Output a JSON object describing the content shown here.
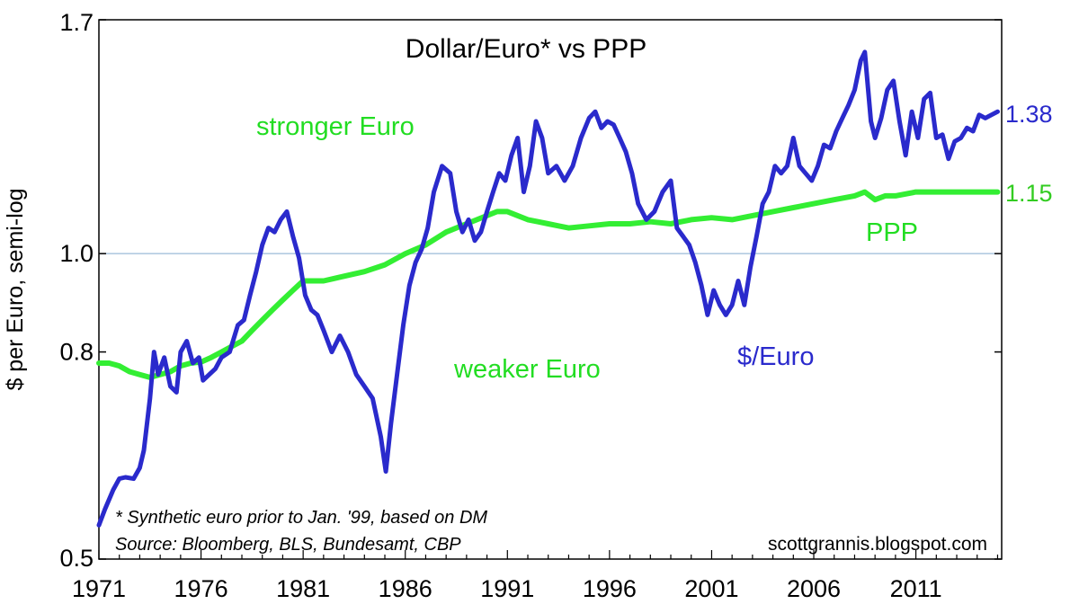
{
  "chart_data": {
    "type": "line",
    "title": "Dollar/Euro* vs PPP",
    "ylabel": "$ per Euro, semi-log",
    "xlabel": "",
    "yscale": "log",
    "ylim": [
      0.5,
      1.7
    ],
    "xlim": [
      1971,
      2015.2
    ],
    "yticks": [
      {
        "value": 0.5,
        "label": "0.5"
      },
      {
        "value": 0.8,
        "label": "0.8"
      },
      {
        "value": 1.0,
        "label": "1.0"
      },
      {
        "value": 1.7,
        "label": "1.7"
      }
    ],
    "xticks": [
      {
        "value": 1971,
        "label": "1971"
      },
      {
        "value": 1976,
        "label": "1976"
      },
      {
        "value": 1981,
        "label": "1981"
      },
      {
        "value": 1986,
        "label": "1986"
      },
      {
        "value": 1991,
        "label": "1991"
      },
      {
        "value": 1996,
        "label": "1996"
      },
      {
        "value": 2001,
        "label": "2001"
      },
      {
        "value": 2006,
        "label": "2006"
      },
      {
        "value": 2011,
        "label": "2011"
      }
    ],
    "reference_line": {
      "value": 1.0,
      "color": "#9bbbd8"
    },
    "series": [
      {
        "name": "$/Euro",
        "color": "#2a2acc",
        "end_label": "1.38",
        "x": [
          1971.0,
          1971.3,
          1971.7,
          1972.0,
          1972.3,
          1972.7,
          1973.0,
          1973.2,
          1973.5,
          1973.7,
          1973.9,
          1974.2,
          1974.5,
          1974.8,
          1975.0,
          1975.3,
          1975.6,
          1975.9,
          1976.1,
          1976.4,
          1976.7,
          1977.0,
          1977.4,
          1977.8,
          1978.1,
          1978.4,
          1978.7,
          1979.0,
          1979.3,
          1979.6,
          1979.9,
          1980.2,
          1980.5,
          1980.8,
          1981.1,
          1981.4,
          1981.7,
          1982.0,
          1982.4,
          1982.8,
          1983.2,
          1983.6,
          1984.0,
          1984.4,
          1984.8,
          1985.05,
          1985.3,
          1985.6,
          1985.9,
          1986.2,
          1986.5,
          1986.8,
          1987.1,
          1987.4,
          1987.8,
          1988.2,
          1988.5,
          1988.8,
          1989.1,
          1989.4,
          1989.7,
          1990.0,
          1990.3,
          1990.6,
          1990.9,
          1991.2,
          1991.5,
          1991.8,
          1992.1,
          1992.4,
          1992.7,
          1993.0,
          1993.4,
          1993.8,
          1994.2,
          1994.6,
          1995.0,
          1995.3,
          1995.6,
          1995.9,
          1996.2,
          1996.5,
          1996.8,
          1997.1,
          1997.4,
          1997.8,
          1998.2,
          1998.6,
          1999.0,
          1999.3,
          1999.6,
          1999.9,
          2000.2,
          2000.5,
          2000.8,
          2001.1,
          2001.4,
          2001.7,
          2002.0,
          2002.3,
          2002.6,
          2002.9,
          2003.2,
          2003.5,
          2003.8,
          2004.1,
          2004.4,
          2004.7,
          2005.0,
          2005.3,
          2005.6,
          2005.9,
          2006.2,
          2006.5,
          2006.8,
          2007.1,
          2007.4,
          2007.7,
          2008.0,
          2008.3,
          2008.5,
          2008.8,
          2009.0,
          2009.3,
          2009.6,
          2009.9,
          2010.2,
          2010.5,
          2010.8,
          2011.1,
          2011.4,
          2011.7,
          2012.0,
          2012.3,
          2012.6,
          2012.9,
          2013.2,
          2013.5,
          2013.8,
          2014.1,
          2014.4,
          2014.7,
          2015.0
        ],
        "values": [
          0.54,
          0.56,
          0.585,
          0.6,
          0.602,
          0.6,
          0.615,
          0.64,
          0.72,
          0.8,
          0.76,
          0.79,
          0.74,
          0.73,
          0.8,
          0.82,
          0.78,
          0.79,
          0.75,
          0.76,
          0.77,
          0.79,
          0.8,
          0.85,
          0.86,
          0.91,
          0.96,
          1.02,
          1.06,
          1.05,
          1.08,
          1.1,
          1.04,
          0.99,
          0.91,
          0.88,
          0.87,
          0.84,
          0.8,
          0.83,
          0.8,
          0.76,
          0.74,
          0.72,
          0.66,
          0.61,
          0.68,
          0.76,
          0.85,
          0.93,
          0.98,
          1.01,
          1.06,
          1.15,
          1.22,
          1.2,
          1.1,
          1.05,
          1.08,
          1.03,
          1.05,
          1.1,
          1.15,
          1.2,
          1.18,
          1.25,
          1.3,
          1.15,
          1.22,
          1.35,
          1.3,
          1.2,
          1.22,
          1.18,
          1.22,
          1.3,
          1.36,
          1.38,
          1.33,
          1.35,
          1.34,
          1.3,
          1.26,
          1.2,
          1.12,
          1.08,
          1.1,
          1.15,
          1.18,
          1.06,
          1.04,
          1.02,
          0.98,
          0.93,
          0.87,
          0.92,
          0.89,
          0.87,
          0.89,
          0.94,
          0.89,
          0.97,
          1.04,
          1.12,
          1.15,
          1.22,
          1.2,
          1.22,
          1.3,
          1.22,
          1.2,
          1.18,
          1.22,
          1.28,
          1.27,
          1.32,
          1.36,
          1.4,
          1.45,
          1.55,
          1.58,
          1.35,
          1.3,
          1.36,
          1.45,
          1.48,
          1.35,
          1.25,
          1.38,
          1.3,
          1.42,
          1.44,
          1.3,
          1.31,
          1.24,
          1.29,
          1.3,
          1.33,
          1.32,
          1.37,
          1.36,
          1.37,
          1.38
        ]
      },
      {
        "name": "PPP",
        "color": "#33ee33",
        "end_label": "1.15",
        "x": [
          1971.0,
          1971.5,
          1972.0,
          1972.5,
          1973.0,
          1973.5,
          1974.0,
          1974.5,
          1975.0,
          1975.5,
          1976.0,
          1976.5,
          1977.0,
          1977.5,
          1978.0,
          1978.5,
          1979.0,
          1979.5,
          1980.0,
          1980.5,
          1981.0,
          1981.5,
          1982.0,
          1982.5,
          1983.0,
          1984.0,
          1985.0,
          1986.0,
          1987.0,
          1988.0,
          1989.0,
          1990.0,
          1990.5,
          1991.0,
          1991.5,
          1992.0,
          1992.5,
          1993.0,
          1993.5,
          1994.0,
          1995.0,
          1996.0,
          1997.0,
          1998.0,
          1999.0,
          2000.0,
          2001.0,
          2002.0,
          2003.0,
          2004.0,
          2005.0,
          2006.0,
          2007.0,
          2008.0,
          2008.5,
          2009.0,
          2009.5,
          2010.0,
          2011.0,
          2012.0,
          2013.0,
          2014.0,
          2015.0
        ],
        "values": [
          0.78,
          0.78,
          0.775,
          0.765,
          0.76,
          0.755,
          0.76,
          0.765,
          0.775,
          0.78,
          0.782,
          0.79,
          0.8,
          0.81,
          0.82,
          0.84,
          0.86,
          0.88,
          0.9,
          0.92,
          0.94,
          0.94,
          0.94,
          0.945,
          0.95,
          0.96,
          0.975,
          1.0,
          1.02,
          1.05,
          1.07,
          1.09,
          1.1,
          1.1,
          1.09,
          1.08,
          1.075,
          1.07,
          1.065,
          1.06,
          1.065,
          1.07,
          1.07,
          1.075,
          1.07,
          1.08,
          1.085,
          1.08,
          1.09,
          1.1,
          1.11,
          1.12,
          1.13,
          1.14,
          1.15,
          1.13,
          1.14,
          1.14,
          1.15,
          1.15,
          1.15,
          1.15,
          1.15
        ]
      }
    ],
    "annotations": [
      {
        "text": "stronger Euro",
        "color": "green"
      },
      {
        "text": "weaker Euro",
        "color": "green"
      },
      {
        "text": "PPP",
        "color": "green"
      },
      {
        "text": "$/Euro",
        "color": "blue"
      }
    ],
    "footnote": "* Synthetic euro prior to Jan. '99, based on DM",
    "source": "Source:  Bloomberg, BLS, Bundesamt, CBP",
    "credit": "scottgrannis.blogspot.com"
  }
}
